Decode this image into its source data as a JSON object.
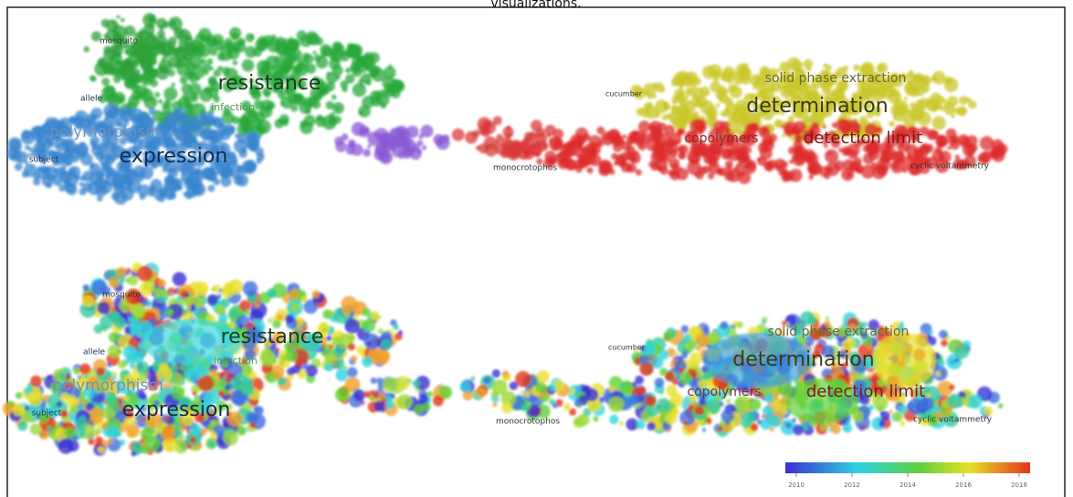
{
  "caption": "visualizations.",
  "labels": [
    "resistance",
    "expression",
    "determination",
    "detection limit",
    "solid phase extraction",
    "polymorphism",
    "mosquito",
    "infection",
    "allele",
    "subject",
    "monocrotophos",
    "cucumber",
    "copolymers",
    "cyclic voltammetry"
  ],
  "legend": {
    "ticks": [
      2010,
      2012,
      2014,
      2016,
      2018
    ]
  }
}
